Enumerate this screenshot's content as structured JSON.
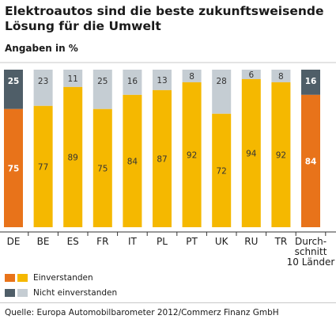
{
  "title": "Elektroautos sind die beste zukunftsweisende Lösung für die Umwelt",
  "subtitle": "Angaben in %",
  "legend": {
    "agree": "Einverstanden",
    "disagree": "Nicht einverstanden"
  },
  "source": "Quelle: Europa Automobilbarometer 2012/Commerz Finanz GmbH",
  "colors": {
    "agree_highlight": "#e8731a",
    "agree": "#f5b800",
    "disagree_highlight": "#4f5e68",
    "disagree": "#c5cdd3"
  },
  "chart_data": {
    "type": "bar",
    "stacked": true,
    "categories": [
      "DE",
      "BE",
      "ES",
      "FR",
      "IT",
      "PL",
      "PT",
      "UK",
      "RU",
      "TR",
      "Durch-\nschnitt\n10 Länder"
    ],
    "highlight": [
      "DE",
      "Durch-\nschnitt\n10 Länder"
    ],
    "series": [
      {
        "name": "Einverstanden",
        "values": [
          75,
          77,
          89,
          75,
          84,
          87,
          92,
          72,
          94,
          92,
          84
        ]
      },
      {
        "name": "Nicht einverstanden",
        "values": [
          25,
          23,
          11,
          25,
          16,
          13,
          8,
          28,
          6,
          8,
          16
        ]
      }
    ],
    "ylim": [
      0,
      100
    ],
    "title": "Elektroautos sind die beste zukunftsweisende Lösung für die Umwelt",
    "ylabel": "Angaben in %"
  }
}
